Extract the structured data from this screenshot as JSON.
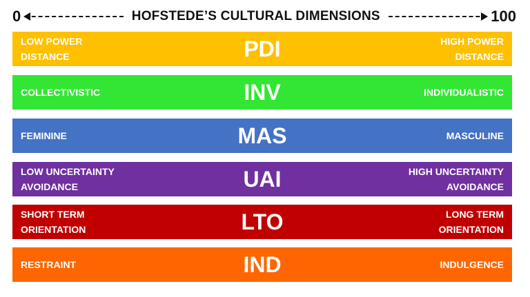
{
  "header": {
    "min": "0",
    "max": "100",
    "title": "HOFSTEDE’S CULTURAL DIMENSIONS"
  },
  "dimensions": [
    {
      "code": "PDI",
      "left": "LOW POWER\nDISTANCE",
      "right": "HIGH POWER\nDISTANCE",
      "color": "#FFC000"
    },
    {
      "code": "INV",
      "left": "COLLECTIVISTIC",
      "right": "INDIVIDUALISTIC",
      "color": "#33E633"
    },
    {
      "code": "MAS",
      "left": "FEMININE",
      "right": "MASCULINE",
      "color": "#4472C4"
    },
    {
      "code": "UAI",
      "left": "LOW UNCERTAINTY\nAVOIDANCE",
      "right": "HIGH UNCERTAINTY\nAVOIDANCE",
      "color": "#7030A0"
    },
    {
      "code": "LTO",
      "left": "SHORT TERM\nORIENTATION",
      "right": "LONG TERM\nORIENTATION",
      "color": "#C00000"
    },
    {
      "code": "IND",
      "left": "RESTRAINT",
      "right": "INDULGENCE",
      "color": "#FF6600"
    }
  ]
}
